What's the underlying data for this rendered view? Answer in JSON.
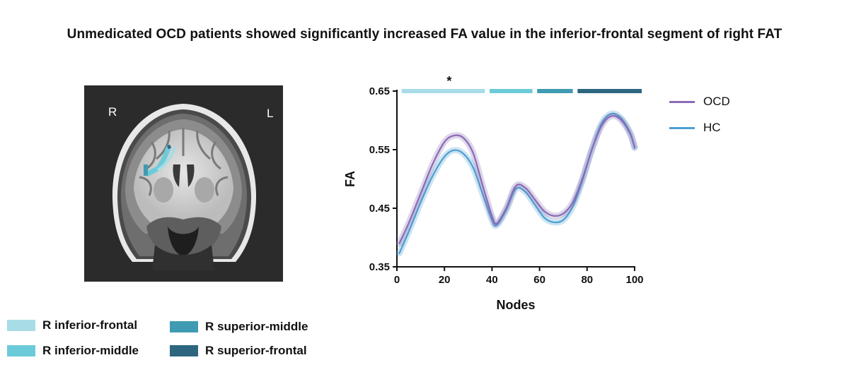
{
  "title": "Unmedicated OCD patients showed significantly increased FA value in the inferior-frontal segment of right FAT",
  "mri": {
    "left_label": "R",
    "right_label": "L"
  },
  "segments": [
    {
      "name": "R inferior-frontal",
      "color": "#a8dce6"
    },
    {
      "name": "R inferior-middle",
      "color": "#6ccbd8"
    },
    {
      "name": "R superior-middle",
      "color": "#3f9bb1"
    },
    {
      "name": "R superior-frontal",
      "color": "#2e6680"
    }
  ],
  "chart_data": {
    "type": "line",
    "xlabel": "Nodes",
    "ylabel": "FA",
    "xlim": [
      0,
      100
    ],
    "ylim": [
      0.35,
      0.65
    ],
    "xticks": [
      0,
      20,
      40,
      60,
      80,
      100
    ],
    "yticks": [
      0.35,
      0.45,
      0.55,
      0.65
    ],
    "ytick_labels": [
      "0.35",
      "0.45",
      "0.55",
      "0.65"
    ],
    "legend_position": "top-right",
    "series": [
      {
        "name": "OCD",
        "color": "#8a6bb5",
        "x": [
          1,
          5,
          10,
          15,
          20,
          24,
          28,
          32,
          36,
          40,
          42,
          46,
          50,
          54,
          58,
          62,
          66,
          70,
          74,
          78,
          82,
          86,
          90,
          94,
          98,
          100
        ],
        "values": [
          0.39,
          0.425,
          0.475,
          0.525,
          0.563,
          0.574,
          0.57,
          0.545,
          0.49,
          0.436,
          0.424,
          0.45,
          0.488,
          0.485,
          0.465,
          0.445,
          0.437,
          0.441,
          0.46,
          0.5,
          0.55,
          0.59,
          0.607,
          0.602,
          0.578,
          0.555
        ]
      },
      {
        "name": "HC",
        "color": "#4a9fd1",
        "x": [
          1,
          5,
          10,
          15,
          20,
          24,
          28,
          32,
          36,
          40,
          42,
          46,
          50,
          54,
          58,
          62,
          66,
          70,
          74,
          78,
          82,
          86,
          90,
          94,
          98,
          100
        ],
        "values": [
          0.373,
          0.41,
          0.46,
          0.505,
          0.538,
          0.549,
          0.543,
          0.52,
          0.475,
          0.43,
          0.421,
          0.447,
          0.483,
          0.478,
          0.456,
          0.434,
          0.426,
          0.43,
          0.453,
          0.497,
          0.55,
          0.594,
          0.611,
          0.605,
          0.58,
          0.553
        ]
      }
    ],
    "segment_bars": [
      {
        "segment": "R inferior-frontal",
        "start": 2,
        "end": 37,
        "color": "#a8dce6"
      },
      {
        "segment": "R inferior-middle",
        "start": 39,
        "end": 57,
        "color": "#6ccbd8"
      },
      {
        "segment": "R superior-middle",
        "start": 59,
        "end": 74,
        "color": "#3f9bb1"
      },
      {
        "segment": "R superior-frontal",
        "start": 76,
        "end": 103,
        "color": "#2e6680"
      }
    ],
    "annotation": {
      "text": "*",
      "x": 22
    }
  }
}
